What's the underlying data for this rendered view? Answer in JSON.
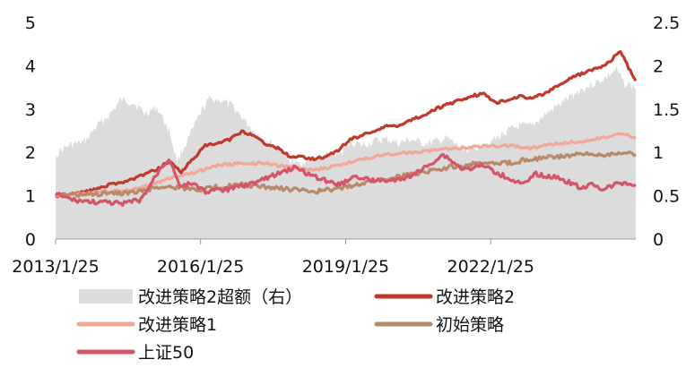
{
  "chart_data": {
    "type": "line",
    "title": "",
    "xlabel": "",
    "ylabel": "",
    "x_start": "2013/1/25",
    "x_end": "2025/1/25",
    "x_ticks": [
      "2013/1/25",
      "2016/1/25",
      "2019/1/25",
      "2022/1/25"
    ],
    "ylim_left": [
      0,
      5
    ],
    "yticks_left": [
      "0",
      "1",
      "2",
      "3",
      "4",
      "5"
    ],
    "ylim_right": [
      0,
      2.5
    ],
    "yticks_right": [
      "0",
      "0.5",
      "1",
      "1.5",
      "2",
      "2.5"
    ],
    "grid": false,
    "legend_position": "bottom",
    "series": [
      {
        "name": "改进策略2超额（右）",
        "kind": "area",
        "axis": "right",
        "color": "#dcdcdc",
        "points": [
          [
            "2013/1/25",
            0.97
          ],
          [
            "2013/5/1",
            1.08
          ],
          [
            "2013/9/1",
            1.12
          ],
          [
            "2013/12/1",
            1.3
          ],
          [
            "2014/3/1",
            1.42
          ],
          [
            "2014/6/1",
            1.6
          ],
          [
            "2014/9/1",
            1.58
          ],
          [
            "2014/12/1",
            1.45
          ],
          [
            "2015/3/1",
            1.52
          ],
          [
            "2015/6/1",
            1.25
          ],
          [
            "2015/8/1",
            0.9
          ],
          [
            "2015/11/1",
            1.18
          ],
          [
            "2016/1/25",
            1.45
          ],
          [
            "2016/4/1",
            1.62
          ],
          [
            "2016/7/1",
            1.6
          ],
          [
            "2016/10/1",
            1.52
          ],
          [
            "2017/1/1",
            1.35
          ],
          [
            "2017/4/1",
            1.2
          ],
          [
            "2017/7/1",
            1.12
          ],
          [
            "2017/10/1",
            1.02
          ],
          [
            "2018/1/1",
            0.86
          ],
          [
            "2018/4/1",
            0.9
          ],
          [
            "2018/7/1",
            0.93
          ],
          [
            "2018/10/1",
            0.97
          ],
          [
            "2019/1/1",
            1.0
          ],
          [
            "2019/3/1",
            1.12
          ],
          [
            "2019/6/1",
            1.08
          ],
          [
            "2019/9/1",
            1.13
          ],
          [
            "2019/12/1",
            1.15
          ],
          [
            "2020/3/1",
            1.1
          ],
          [
            "2020/6/1",
            1.15
          ],
          [
            "2020/9/1",
            1.1
          ],
          [
            "2020/12/1",
            1.12
          ],
          [
            "2021/3/1",
            1.16
          ],
          [
            "2021/6/1",
            1.06
          ],
          [
            "2021/9/1",
            1.02
          ],
          [
            "2021/12/1",
            1.1
          ],
          [
            "2022/3/1",
            1.15
          ],
          [
            "2022/6/1",
            1.25
          ],
          [
            "2022/9/1",
            1.3
          ],
          [
            "2022/12/1",
            1.3
          ],
          [
            "2023/3/1",
            1.42
          ],
          [
            "2023/6/1",
            1.52
          ],
          [
            "2023/9/1",
            1.62
          ],
          [
            "2023/12/1",
            1.72
          ],
          [
            "2024/3/1",
            1.78
          ],
          [
            "2024/6/1",
            1.85
          ],
          [
            "2024/9/1",
            1.95
          ],
          [
            "2024/11/1",
            1.8
          ],
          [
            "2025/1/25",
            1.75
          ]
        ]
      },
      {
        "name": "改进策略2",
        "kind": "line",
        "axis": "left",
        "color": "#c0392b",
        "points": [
          [
            "2013/1/25",
            1.0
          ],
          [
            "2013/6/1",
            1.05
          ],
          [
            "2013/10/1",
            1.1
          ],
          [
            "2014/3/1",
            1.25
          ],
          [
            "2014/8/1",
            1.35
          ],
          [
            "2014/12/1",
            1.5
          ],
          [
            "2015/3/1",
            1.6
          ],
          [
            "2015/6/1",
            1.8
          ],
          [
            "2015/9/1",
            1.55
          ],
          [
            "2015/12/1",
            1.85
          ],
          [
            "2016/3/1",
            2.15
          ],
          [
            "2016/6/1",
            2.2
          ],
          [
            "2016/9/1",
            2.3
          ],
          [
            "2016/12/1",
            2.48
          ],
          [
            "2017/3/1",
            2.4
          ],
          [
            "2017/6/1",
            2.2
          ],
          [
            "2017/9/1",
            2.1
          ],
          [
            "2017/12/1",
            1.9
          ],
          [
            "2018/3/1",
            1.9
          ],
          [
            "2018/6/1",
            1.85
          ],
          [
            "2018/9/1",
            1.9
          ],
          [
            "2018/12/1",
            2.05
          ],
          [
            "2019/3/1",
            2.3
          ],
          [
            "2019/6/1",
            2.4
          ],
          [
            "2019/9/1",
            2.5
          ],
          [
            "2019/12/1",
            2.6
          ],
          [
            "2020/3/1",
            2.62
          ],
          [
            "2020/6/1",
            2.75
          ],
          [
            "2020/9/1",
            2.85
          ],
          [
            "2020/12/1",
            3.0
          ],
          [
            "2021/3/1",
            3.1
          ],
          [
            "2021/6/1",
            3.2
          ],
          [
            "2021/9/1",
            3.3
          ],
          [
            "2021/12/1",
            3.35
          ],
          [
            "2022/3/1",
            3.15
          ],
          [
            "2022/6/1",
            3.2
          ],
          [
            "2022/9/1",
            3.3
          ],
          [
            "2022/12/1",
            3.25
          ],
          [
            "2023/3/1",
            3.35
          ],
          [
            "2023/6/1",
            3.5
          ],
          [
            "2023/9/1",
            3.7
          ],
          [
            "2023/12/1",
            3.8
          ],
          [
            "2024/3/1",
            3.9
          ],
          [
            "2024/6/1",
            4.0
          ],
          [
            "2024/8/1",
            4.15
          ],
          [
            "2024/10/1",
            4.35
          ],
          [
            "2024/12/1",
            3.95
          ],
          [
            "2025/1/25",
            3.65
          ]
        ]
      },
      {
        "name": "改进策略1",
        "kind": "line",
        "axis": "left",
        "color": "#f0a898",
        "points": [
          [
            "2013/1/25",
            1.0
          ],
          [
            "2013/8/1",
            1.05
          ],
          [
            "2014/3/1",
            1.1
          ],
          [
            "2014/10/1",
            1.15
          ],
          [
            "2015/3/1",
            1.3
          ],
          [
            "2015/8/1",
            1.45
          ],
          [
            "2016/1/1",
            1.55
          ],
          [
            "2016/6/1",
            1.7
          ],
          [
            "2016/12/1",
            1.75
          ],
          [
            "2017/6/1",
            1.75
          ],
          [
            "2017/12/1",
            1.65
          ],
          [
            "2018/6/1",
            1.6
          ],
          [
            "2018/12/1",
            1.7
          ],
          [
            "2019/6/1",
            1.85
          ],
          [
            "2019/12/1",
            1.95
          ],
          [
            "2020/6/1",
            2.0
          ],
          [
            "2020/12/1",
            2.05
          ],
          [
            "2021/6/1",
            2.1
          ],
          [
            "2021/12/1",
            2.15
          ],
          [
            "2022/6/1",
            2.15
          ],
          [
            "2022/12/1",
            2.1
          ],
          [
            "2023/6/1",
            2.2
          ],
          [
            "2023/12/1",
            2.25
          ],
          [
            "2024/6/1",
            2.35
          ],
          [
            "2024/10/1",
            2.45
          ],
          [
            "2025/1/25",
            2.35
          ]
        ]
      },
      {
        "name": "初始策略",
        "kind": "line",
        "axis": "left",
        "color": "#b88a6a",
        "points": [
          [
            "2013/1/25",
            1.0
          ],
          [
            "2013/8/1",
            1.02
          ],
          [
            "2014/3/1",
            1.05
          ],
          [
            "2014/10/1",
            1.08
          ],
          [
            "2015/3/1",
            1.2
          ],
          [
            "2015/8/1",
            1.2
          ],
          [
            "2016/1/1",
            1.15
          ],
          [
            "2016/6/1",
            1.2
          ],
          [
            "2016/12/1",
            1.25
          ],
          [
            "2017/6/1",
            1.2
          ],
          [
            "2017/12/1",
            1.15
          ],
          [
            "2018/6/1",
            1.1
          ],
          [
            "2018/12/1",
            1.15
          ],
          [
            "2019/6/1",
            1.3
          ],
          [
            "2019/12/1",
            1.4
          ],
          [
            "2020/6/1",
            1.5
          ],
          [
            "2020/12/1",
            1.6
          ],
          [
            "2021/6/1",
            1.7
          ],
          [
            "2021/12/1",
            1.75
          ],
          [
            "2022/6/1",
            1.75
          ],
          [
            "2022/12/1",
            1.85
          ],
          [
            "2023/6/1",
            1.9
          ],
          [
            "2023/12/1",
            1.95
          ],
          [
            "2024/6/1",
            1.95
          ],
          [
            "2024/10/1",
            2.0
          ],
          [
            "2025/1/25",
            1.95
          ]
        ]
      },
      {
        "name": "上证50",
        "kind": "line",
        "axis": "left",
        "color": "#d45468",
        "points": [
          [
            "2013/1/25",
            1.05
          ],
          [
            "2013/6/1",
            0.9
          ],
          [
            "2013/12/1",
            0.85
          ],
          [
            "2014/6/1",
            0.82
          ],
          [
            "2014/11/1",
            0.9
          ],
          [
            "2015/1/1",
            1.2
          ],
          [
            "2015/4/1",
            1.65
          ],
          [
            "2015/6/1",
            1.85
          ],
          [
            "2015/9/1",
            1.2
          ],
          [
            "2015/12/1",
            1.3
          ],
          [
            "2016/3/1",
            1.1
          ],
          [
            "2016/9/1",
            1.15
          ],
          [
            "2017/3/1",
            1.3
          ],
          [
            "2017/9/1",
            1.5
          ],
          [
            "2018/1/1",
            1.65
          ],
          [
            "2018/6/1",
            1.45
          ],
          [
            "2018/12/1",
            1.25
          ],
          [
            "2019/4/1",
            1.45
          ],
          [
            "2019/9/1",
            1.35
          ],
          [
            "2020/3/1",
            1.35
          ],
          [
            "2020/8/1",
            1.55
          ],
          [
            "2021/2/1",
            1.95
          ],
          [
            "2021/7/1",
            1.6
          ],
          [
            "2021/12/1",
            1.7
          ],
          [
            "2022/4/1",
            1.5
          ],
          [
            "2022/10/1",
            1.25
          ],
          [
            "2023/1/1",
            1.5
          ],
          [
            "2023/7/1",
            1.4
          ],
          [
            "2023/12/1",
            1.2
          ],
          [
            "2024/3/1",
            1.25
          ],
          [
            "2024/6/1",
            1.15
          ],
          [
            "2024/10/1",
            1.3
          ],
          [
            "2025/1/25",
            1.25
          ]
        ]
      }
    ]
  }
}
